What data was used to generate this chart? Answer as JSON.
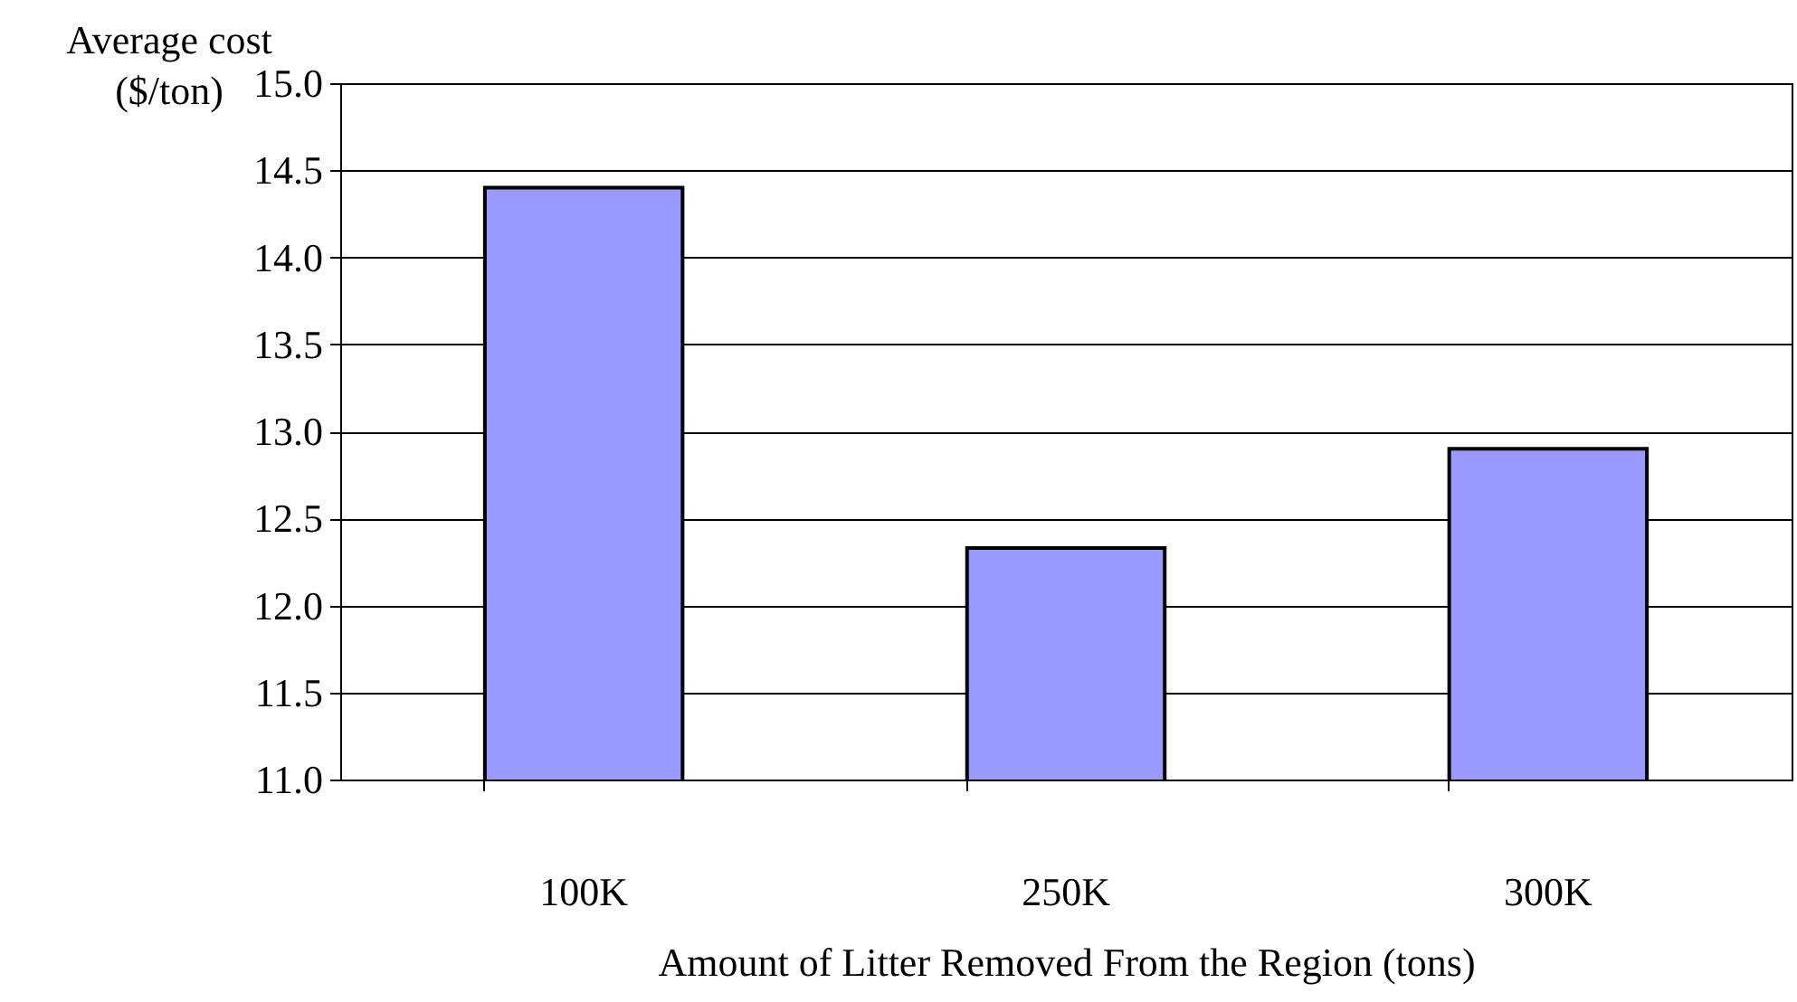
{
  "chart_data": {
    "type": "bar",
    "xlabel": "Amount of Litter Removed From the Region (tons)",
    "ylabel": "Average cost\n($/ton)",
    "categories": [
      "100K",
      "250K",
      "300K"
    ],
    "values": [
      14.4,
      12.33,
      12.9
    ],
    "color": "#9999ff",
    "ylim": [
      11.0,
      15.0
    ],
    "yticks": [
      {
        "value": 11,
        "label": "11.0"
      },
      {
        "value": 11.5,
        "label": "11.5"
      },
      {
        "value": 12,
        "label": "12.0"
      },
      {
        "value": 12.5,
        "label": "12.5"
      },
      {
        "value": 13,
        "label": "13.0"
      },
      {
        "value": 13.5,
        "label": "13.5"
      },
      {
        "value": 14,
        "label": "14.0"
      },
      {
        "value": 14.5,
        "label": "14.5"
      },
      {
        "value": 15,
        "label": "15.0"
      }
    ],
    "grid": "y"
  }
}
